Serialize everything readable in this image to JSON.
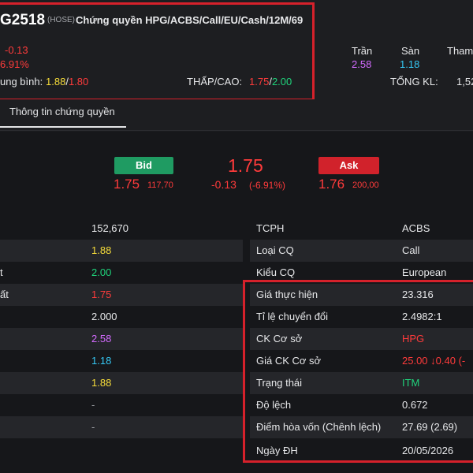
{
  "header": {
    "symbol": "G2518",
    "exchange": "(HOSE)",
    "title": "Chứng quyền HPG/ACBS/Call/EU/Cash/12M/69",
    "change": "-0.13",
    "change_pct": "6.91%",
    "avg_label": "ung bình:",
    "avg_high": "1.88",
    "avg_sep": "/",
    "avg_low": "1.80",
    "range_label": "THẤP/CAO:",
    "range_low": "1.75",
    "range_sep": "/",
    "range_high": "2.00",
    "ceiling_label": "Trần",
    "ceiling_value": "2.58",
    "floor_label": "Sàn",
    "floor_value": "1.18",
    "ref_label": "Tham",
    "total_vol_label": "TỔNG KL:",
    "total_vol_value": "1,52"
  },
  "tabs": {
    "active": "Thông tin chứng quyền"
  },
  "quote": {
    "bid_label": "Bid",
    "bid_price": "1.75",
    "bid_vol": "117,70",
    "last_price": "1.75",
    "last_change": "-0.13",
    "last_change_pct": "(-6.91%)",
    "ask_label": "Ask",
    "ask_price": "1.76",
    "ask_vol": "200,00"
  },
  "left_rows": [
    {
      "label": "",
      "value": "152,670",
      "color": "white"
    },
    {
      "label": "",
      "value": "1.88",
      "color": "yellow"
    },
    {
      "label": "t",
      "value": "2.00",
      "color": "green"
    },
    {
      "label": "ất",
      "value": "1.75",
      "color": "red"
    },
    {
      "label": "",
      "value": "2.000",
      "color": "white"
    },
    {
      "label": "",
      "value": "2.58",
      "color": "purple"
    },
    {
      "label": "",
      "value": "1.18",
      "color": "cyan"
    },
    {
      "label": "",
      "value": "1.88",
      "color": "yellow"
    },
    {
      "label": "",
      "value": "-",
      "color": "gray"
    },
    {
      "label": "",
      "value": "-",
      "color": "gray"
    }
  ],
  "right_rows": [
    {
      "label": "TCPH",
      "value": "ACBS",
      "color": "white"
    },
    {
      "label": "Loại CQ",
      "value": "Call",
      "color": "white"
    },
    {
      "label": "Kiểu CQ",
      "value": "European",
      "color": "white"
    },
    {
      "label": "Giá thực hiện",
      "value": "23.316",
      "color": "white"
    },
    {
      "label": "Tỉ lệ chuyển đổi",
      "value": "2.4982:1",
      "color": "white"
    },
    {
      "label": "CK Cơ sở",
      "value": "HPG",
      "color": "red"
    },
    {
      "label": "Giá CK Cơ sở",
      "value": "25.00",
      "color": "red",
      "extra_arrow": "↓",
      "extra": "0.40 (-"
    },
    {
      "label": "Trạng thái",
      "value": "ITM",
      "color": "green"
    },
    {
      "label": "Độ lệch",
      "value": "0.672",
      "color": "white"
    },
    {
      "label": "Điểm hòa vốn (Chênh lệch)",
      "value": "27.69 (2.69)",
      "color": "white"
    },
    {
      "label": "Ngày ĐH",
      "value": "20/05/2026",
      "color": "white"
    }
  ]
}
